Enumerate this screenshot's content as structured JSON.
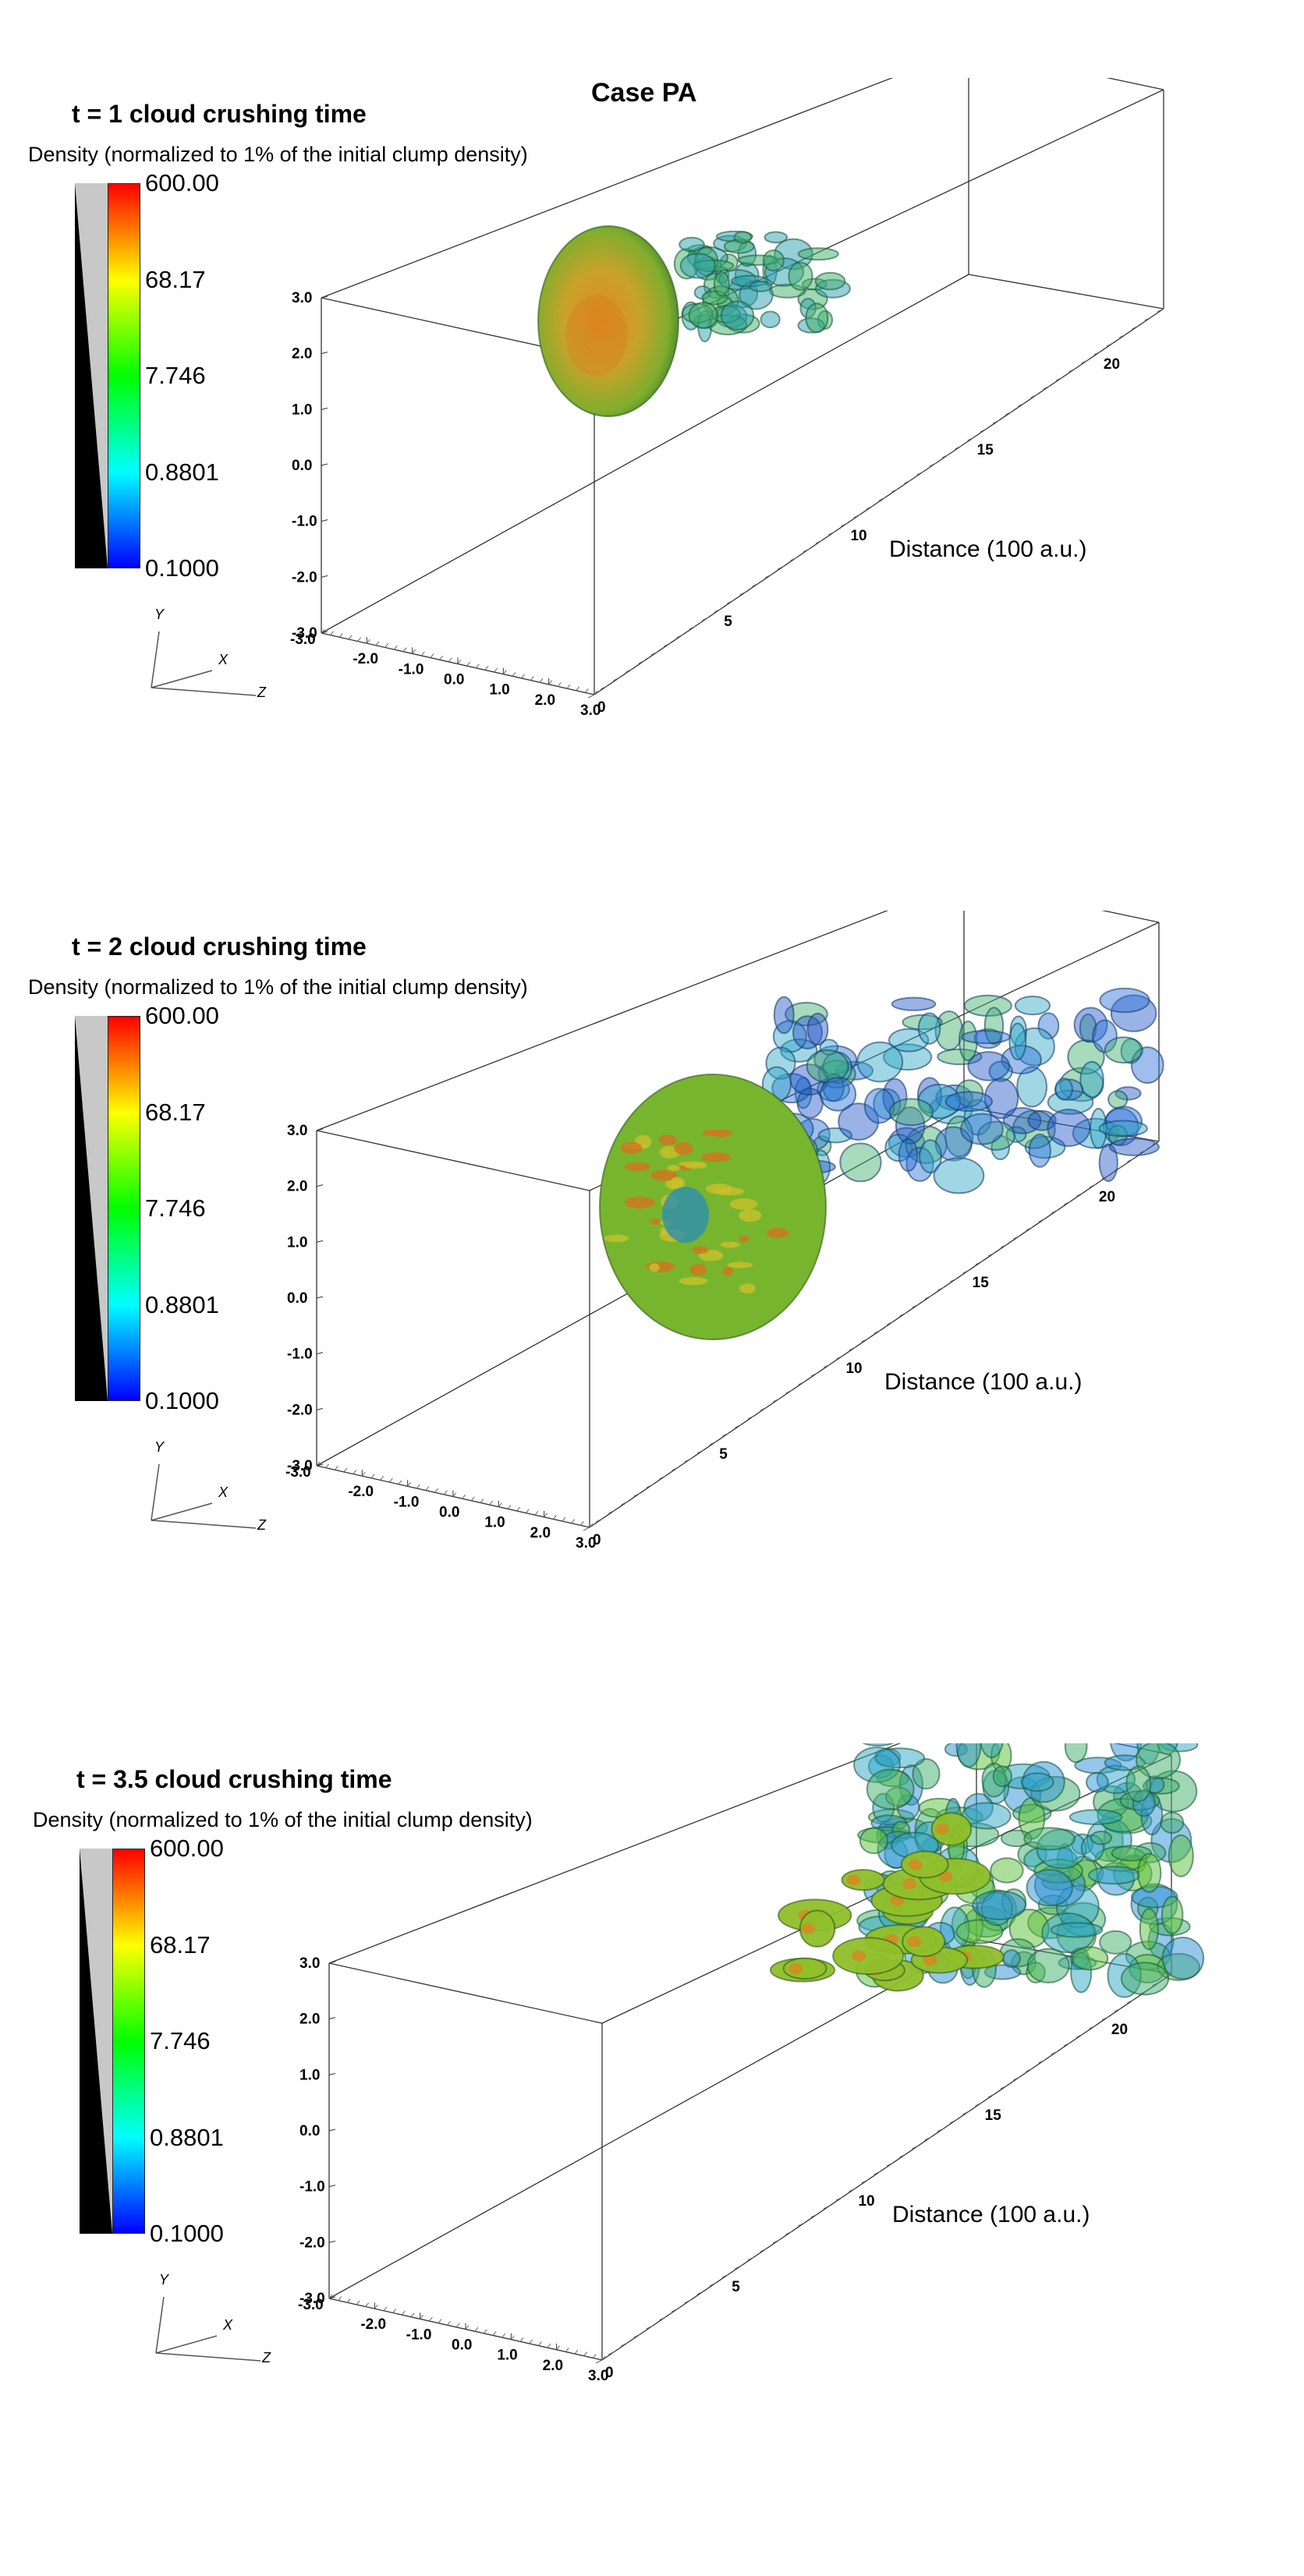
{
  "figure": {
    "title": "Case PA",
    "colorbar": {
      "title": "Density (normalized to 1% of the initial clump density)",
      "ticks": [
        "600.00",
        "68.17",
        "7.746",
        "0.8801",
        "0.1000"
      ],
      "colors": [
        "#ff0000",
        "#ff7f00",
        "#ffff00",
        "#7fff00",
        "#00ff00",
        "#00ff7f",
        "#00ffff",
        "#007fff",
        "#0000ff"
      ]
    },
    "axes": {
      "axis_names": [
        "Y",
        "X",
        "Z"
      ],
      "y_ticks": [
        "3.0",
        "2.0",
        "1.0",
        "0.0",
        "-1.0",
        "-2.0",
        "-3.0"
      ],
      "x_ticks": [
        "-3.0",
        "-2.0",
        "-1.0",
        "0.0",
        "1.0",
        "2.0",
        "3.0"
      ],
      "z_ticks": [
        "0",
        "5",
        "10",
        "15",
        "20"
      ],
      "z_label": "Distance (100 a.u.)"
    },
    "panels": [
      {
        "title": "t = 1 cloud crushing time",
        "stage": 1
      },
      {
        "title": "t = 2 cloud crushing time",
        "stage": 2
      },
      {
        "title": "t = 3.5 cloud crushing time",
        "stage": 3
      }
    ]
  }
}
